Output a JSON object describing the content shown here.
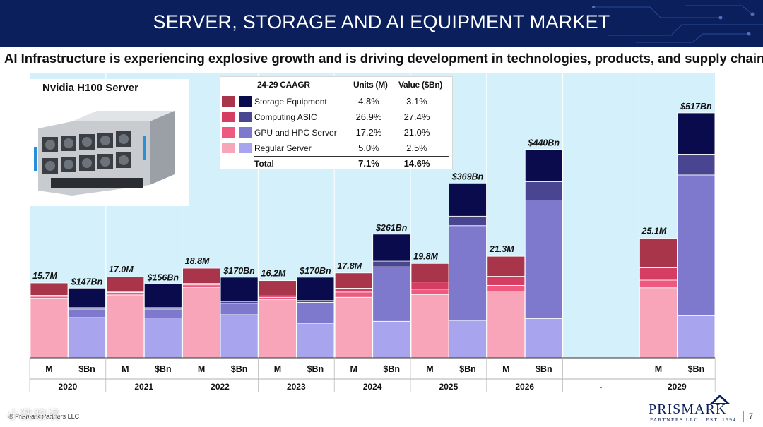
{
  "header": {
    "title": "SERVER, STORAGE AND AI  EQUIPMENT MARKET",
    "subtitle": "AI Infrastructure is experiencing explosive growth and is driving development in technologies, products, and supply chains."
  },
  "server_image": {
    "label": "Nvidia H100 Server"
  },
  "legend": {
    "heading": "24-29 CAAGR",
    "col_units": "Units (M)",
    "col_value": "Value ($Bn)",
    "rows": [
      {
        "label": "Storage Equipment",
        "units": "4.8%",
        "value": "3.1%"
      },
      {
        "label": "Computing ASIC",
        "units": "26.9%",
        "value": "27.4%"
      },
      {
        "label": "GPU and HPC Server",
        "units": "17.2%",
        "value": "21.0%"
      },
      {
        "label": "Regular Server",
        "units": "5.0%",
        "value": "2.5%"
      }
    ],
    "total": {
      "label": "Total",
      "units": "7.1%",
      "value": "14.6%"
    }
  },
  "colors": {
    "background": "#d4f1fb",
    "header_band": "#0a1f5c",
    "units": {
      "regular": "#f9a5b9",
      "gpu": "#f0597f",
      "asic": "#d63d63",
      "storage": "#a83549"
    },
    "value": {
      "regular": "#a9a4ee",
      "gpu": "#7e79cc",
      "asic": "#4a4590",
      "storage": "#090b4c"
    }
  },
  "chart_data": {
    "type": "bar",
    "stacked": true,
    "segments": [
      "Regular Server",
      "GPU and HPC Server",
      "Computing ASIC",
      "Storage Equipment"
    ],
    "groups": [
      {
        "year": "2020",
        "units": {
          "label": "M",
          "total_label": "15.7M",
          "total": 15.7,
          "values": [
            12.5,
            0.4,
            0.2,
            2.6
          ]
        },
        "value": {
          "label": "$Bn",
          "total_label": "$147Bn",
          "total": 147,
          "values": [
            85,
            18,
            3,
            41
          ]
        }
      },
      {
        "year": "2021",
        "units": {
          "label": "M",
          "total_label": "17.0M",
          "total": 17.0,
          "values": [
            13.2,
            0.5,
            0.2,
            3.1
          ]
        },
        "value": {
          "label": "$Bn",
          "total_label": "$156Bn",
          "total": 156,
          "values": [
            84,
            19,
            3,
            50
          ]
        }
      },
      {
        "year": "2022",
        "units": {
          "label": "M",
          "total_label": "18.8M",
          "total": 18.8,
          "values": [
            14.8,
            0.5,
            0.3,
            3.2
          ]
        },
        "value": {
          "label": "$Bn",
          "total_label": "$170Bn",
          "total": 170,
          "values": [
            91,
            24,
            4,
            51
          ]
        }
      },
      {
        "year": "2023",
        "units": {
          "label": "M",
          "total_label": "16.2M",
          "total": 16.2,
          "values": [
            12.2,
            0.5,
            0.3,
            3.2
          ]
        },
        "value": {
          "label": "$Bn",
          "total_label": "$170Bn",
          "total": 170,
          "values": [
            73,
            44,
            4,
            49
          ]
        }
      },
      {
        "year": "2024",
        "units": {
          "label": "M",
          "total_label": "17.8M",
          "total": 17.8,
          "values": [
            12.7,
            1.1,
            0.8,
            3.2
          ]
        },
        "value": {
          "label": "$Bn",
          "total_label": "$261Bn",
          "total": 261,
          "values": [
            77,
            115,
            12,
            57
          ]
        }
      },
      {
        "year": "2025",
        "units": {
          "label": "M",
          "total_label": "19.8M",
          "total": 19.8,
          "values": [
            13.3,
            1.1,
            1.5,
            3.9
          ]
        },
        "value": {
          "label": "$Bn",
          "total_label": "$369Bn",
          "total": 369,
          "values": [
            79,
            200,
            20,
            70
          ]
        }
      },
      {
        "year": "2026",
        "units": {
          "label": "M",
          "total_label": "21.3M",
          "total": 21.3,
          "values": [
            14.0,
            1.2,
            1.9,
            4.2
          ]
        },
        "value": {
          "label": "$Bn",
          "total_label": "$440Bn",
          "total": 440,
          "values": [
            83,
            250,
            39,
            68
          ]
        }
      },
      {
        "year": "-",
        "spacer": true
      },
      {
        "year": "2029",
        "units": {
          "label": "M",
          "total_label": "25.1M",
          "total": 25.1,
          "values": [
            14.7,
            1.6,
            2.6,
            6.2
          ]
        },
        "value": {
          "label": "$Bn",
          "total_label": "$517Bn",
          "total": 517,
          "values": [
            89,
            297,
            44,
            87
          ]
        }
      }
    ]
  },
  "footer": {
    "copyright": "© Prismark Partners LLC",
    "watermark": "小数瞭境",
    "logo_name": "PRISMARK",
    "logo_sub": "PARTNERS LLC · EST. 1994",
    "page": "7"
  }
}
